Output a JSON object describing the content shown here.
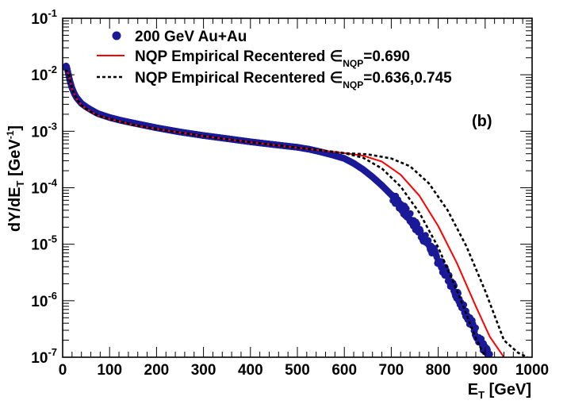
{
  "chart_data": {
    "type": "scatter",
    "panel_label": "(b)",
    "xlabel": {
      "base": "E",
      "sub": "T",
      "rest": " [GeV]"
    },
    "ylabel": {
      "a": "dY/dE",
      "sub": "T",
      "b": " [GeV",
      "sup": "-1",
      "c": "]"
    },
    "xlim": [
      0,
      1000
    ],
    "ylim": [
      1e-07,
      0.1
    ],
    "yscale": "log",
    "x_ticks": [
      0,
      100,
      200,
      300,
      400,
      500,
      600,
      700,
      800,
      900,
      1000
    ],
    "y_ticks": [
      {
        "value": 1e-07,
        "exp": "-7"
      },
      {
        "value": 1e-06,
        "exp": "-6"
      },
      {
        "value": 1e-05,
        "exp": "-5"
      },
      {
        "value": 0.0001,
        "exp": "-4"
      },
      {
        "value": 0.001,
        "exp": "-3"
      },
      {
        "value": 0.01,
        "exp": "-2"
      },
      {
        "value": 0.1,
        "exp": "-1"
      }
    ],
    "legend": [
      {
        "label": "200 GeV Au+Au",
        "style": "marker",
        "color": "#1a1a99"
      },
      {
        "label": "NQP Empirical Recentered ",
        "epsilon": "∈",
        "sub": "NQP",
        "value": "=0.690",
        "style": "solid",
        "color": "#ff0000"
      },
      {
        "label": "NQP Empirical Recentered ",
        "epsilon": "∈",
        "sub": "NQP",
        "value": "=0.636,0.745",
        "style": "dashed",
        "color": "#000000"
      }
    ],
    "series": [
      {
        "name": "200 GeV Au+Au",
        "kind": "marker",
        "color": "#1a1a99",
        "x": [
          5,
          8,
          10,
          13,
          16,
          20,
          25,
          30,
          40,
          50,
          60,
          75,
          100,
          125,
          150,
          200,
          250,
          300,
          350,
          400,
          450,
          500,
          525,
          550,
          575,
          600,
          620,
          640,
          660,
          680,
          700,
          720,
          740,
          760,
          780,
          800,
          820,
          840,
          860,
          880,
          900,
          910
        ],
        "y": [
          0.0135,
          0.0145,
          0.0125,
          0.0095,
          0.0075,
          0.0058,
          0.0046,
          0.0039,
          0.0031,
          0.0027,
          0.0024,
          0.00205,
          0.00175,
          0.00155,
          0.0014,
          0.00115,
          0.00097,
          0.00084,
          0.00074,
          0.00065,
          0.00058,
          0.00052,
          0.00048,
          0.00043,
          0.00038,
          0.00033,
          0.00027,
          0.00021,
          0.000155,
          0.00011,
          7.5e-05,
          4.8e-05,
          2.9e-05,
          1.7e-05,
          9.8e-06,
          5.3e-06,
          2.7e-06,
          1.3e-06,
          6.1e-07,
          2.8e-07,
          1.3e-07,
          1e-07
        ]
      },
      {
        "name": "NQP Empirical Recentered 0.690",
        "kind": "solid",
        "color": "#ff0000",
        "x": [
          5,
          10,
          15,
          20,
          30,
          40,
          50,
          75,
          100,
          150,
          200,
          300,
          400,
          500,
          550,
          600,
          640,
          680,
          720,
          760,
          800,
          840,
          880,
          910,
          940
        ],
        "y": [
          0.012,
          0.0115,
          0.0088,
          0.0056,
          0.0037,
          0.0029,
          0.0025,
          0.0019,
          0.00165,
          0.0013,
          0.0011,
          0.00082,
          0.00064,
          0.00051,
          0.00046,
          0.00041,
          0.00037,
          0.00029,
          0.00017,
          7.2e-05,
          2.1e-05,
          4.6e-06,
          8e-07,
          2.3e-07,
          1e-07
        ]
      },
      {
        "name": "NQP Empirical Recentered 0.636",
        "kind": "dashed",
        "color": "#000000",
        "x": [
          5,
          10,
          15,
          20,
          30,
          40,
          50,
          75,
          100,
          150,
          200,
          300,
          400,
          500,
          550,
          600,
          640,
          680,
          720,
          760,
          800,
          840,
          880,
          900
        ],
        "y": [
          0.012,
          0.0115,
          0.0088,
          0.0056,
          0.0037,
          0.0029,
          0.0025,
          0.0019,
          0.00165,
          0.0013,
          0.0011,
          0.00082,
          0.00064,
          0.00051,
          0.00046,
          0.00041,
          0.00034,
          0.00022,
          0.000105,
          3.6e-05,
          8.8e-06,
          1.5e-06,
          2.2e-07,
          1e-07
        ]
      },
      {
        "name": "NQP Empirical Recentered 0.745",
        "kind": "dashed",
        "color": "#000000",
        "x": [
          5,
          10,
          15,
          20,
          30,
          40,
          50,
          75,
          100,
          150,
          200,
          300,
          400,
          500,
          550,
          600,
          650,
          700,
          740,
          780,
          820,
          860,
          900,
          940,
          970,
          990
        ],
        "y": [
          0.012,
          0.0115,
          0.0088,
          0.0056,
          0.0037,
          0.0029,
          0.0025,
          0.0019,
          0.00165,
          0.0013,
          0.0011,
          0.00082,
          0.00064,
          0.00051,
          0.00046,
          0.00041,
          0.00039,
          0.00033,
          0.00024,
          0.00012,
          4e-05,
          9.2e-06,
          1.5e-06,
          2e-07,
          1.2e-07,
          1e-07
        ]
      }
    ]
  }
}
